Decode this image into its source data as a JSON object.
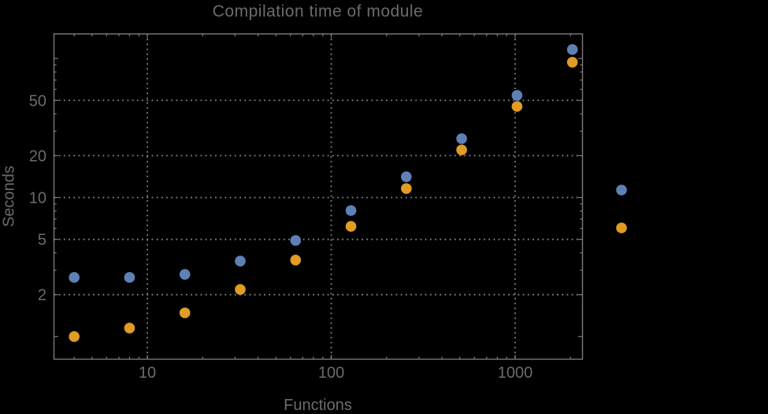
{
  "chart_data": {
    "type": "scatter",
    "title": "Compilation time of module",
    "xlabel": "Functions",
    "ylabel": "Seconds",
    "x_scale": "log",
    "y_scale": "log",
    "x": [
      4,
      8,
      16,
      32,
      64,
      128,
      256,
      512,
      1024,
      2048
    ],
    "series": [
      {
        "id": "series-1",
        "color": "#5E81B5",
        "values": [
          2.66,
          2.66,
          2.8,
          3.49,
          4.91,
          8.06,
          14.1,
          26.5,
          54.3,
          116
        ]
      },
      {
        "id": "series-2",
        "color": "#E19C24",
        "values": [
          1.0,
          1.15,
          1.48,
          2.18,
          3.55,
          6.2,
          11.6,
          22.0,
          45.2,
          94.0
        ]
      }
    ],
    "x_ticks_labeled": [
      10,
      100,
      1000
    ],
    "y_ticks_labeled": [
      2,
      5,
      10,
      20,
      50
    ],
    "x_grid": [
      10,
      100,
      1000
    ],
    "y_grid": [
      2,
      5,
      10,
      20,
      50
    ],
    "x_range": [
      3.105,
      2325
    ],
    "y_range": [
      0.687,
      150.3
    ],
    "grid_style": "dotted",
    "legend_position": "right",
    "legend_markers_only": true,
    "marker_radius_px": 6.8,
    "colors": {
      "background": "#000000",
      "frame": "#7a7a7a",
      "grid": "#858585",
      "text": "#6b6b6b"
    }
  }
}
